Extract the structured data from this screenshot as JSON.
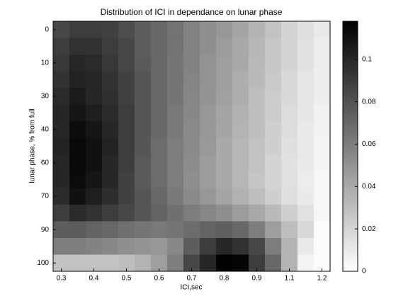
{
  "chart_data": {
    "type": "heatmap",
    "title": "Distribution of ICI in dependance on lunar phase",
    "x_label": "ICI,sec",
    "y_label": "lunar phase, % from full",
    "x_categories": [
      "0.3",
      null,
      "0.4",
      null,
      "0.5",
      null,
      "0.6",
      null,
      "0.7",
      null,
      "0.8",
      null,
      "0.9",
      null,
      "1.1",
      null,
      "1.2"
    ],
    "y_categories": [
      "0",
      null,
      "10",
      null,
      "30",
      null,
      "40",
      null,
      "60",
      null,
      "70",
      null,
      "90",
      null,
      "100"
    ],
    "z": [
      [
        0.085,
        0.09,
        0.09,
        0.088,
        0.082,
        0.075,
        0.07,
        0.065,
        0.058,
        0.052,
        0.048,
        0.042,
        0.035,
        0.028,
        0.02,
        0.015,
        0.01
      ],
      [
        0.09,
        0.095,
        0.095,
        0.09,
        0.085,
        0.075,
        0.07,
        0.065,
        0.058,
        0.052,
        0.046,
        0.04,
        0.034,
        0.026,
        0.02,
        0.014,
        0.008
      ],
      [
        0.092,
        0.1,
        0.098,
        0.092,
        0.085,
        0.076,
        0.07,
        0.064,
        0.058,
        0.05,
        0.045,
        0.04,
        0.033,
        0.026,
        0.02,
        0.014,
        0.008
      ],
      [
        0.095,
        0.102,
        0.1,
        0.095,
        0.088,
        0.078,
        0.07,
        0.064,
        0.057,
        0.05,
        0.045,
        0.038,
        0.032,
        0.025,
        0.018,
        0.012,
        0.008
      ],
      [
        0.098,
        0.105,
        0.1,
        0.096,
        0.088,
        0.078,
        0.07,
        0.064,
        0.056,
        0.05,
        0.044,
        0.038,
        0.03,
        0.024,
        0.018,
        0.012,
        0.008
      ],
      [
        0.1,
        0.108,
        0.104,
        0.098,
        0.09,
        0.078,
        0.07,
        0.062,
        0.055,
        0.048,
        0.042,
        0.036,
        0.03,
        0.024,
        0.016,
        0.012,
        0.006
      ],
      [
        0.1,
        0.112,
        0.108,
        0.1,
        0.09,
        0.078,
        0.07,
        0.062,
        0.054,
        0.048,
        0.042,
        0.035,
        0.03,
        0.022,
        0.016,
        0.01,
        0.006
      ],
      [
        0.102,
        0.114,
        0.11,
        0.102,
        0.09,
        0.078,
        0.068,
        0.06,
        0.054,
        0.047,
        0.04,
        0.034,
        0.028,
        0.022,
        0.015,
        0.01,
        0.005
      ],
      [
        0.1,
        0.114,
        0.11,
        0.1,
        0.09,
        0.077,
        0.068,
        0.06,
        0.053,
        0.046,
        0.04,
        0.034,
        0.028,
        0.02,
        0.014,
        0.01,
        0.005
      ],
      [
        0.1,
        0.113,
        0.108,
        0.1,
        0.088,
        0.076,
        0.068,
        0.06,
        0.052,
        0.046,
        0.04,
        0.034,
        0.027,
        0.02,
        0.014,
        0.009,
        0.004
      ],
      [
        0.098,
        0.11,
        0.104,
        0.097,
        0.088,
        0.078,
        0.07,
        0.062,
        0.054,
        0.048,
        0.042,
        0.036,
        0.03,
        0.022,
        0.015,
        0.01,
        0.004
      ],
      [
        0.09,
        0.098,
        0.095,
        0.09,
        0.085,
        0.078,
        0.072,
        0.066,
        0.06,
        0.056,
        0.052,
        0.046,
        0.04,
        0.032,
        0.022,
        0.014,
        0.004
      ],
      [
        0.075,
        0.075,
        0.072,
        0.07,
        0.066,
        0.064,
        0.062,
        0.064,
        0.068,
        0.072,
        0.074,
        0.07,
        0.06,
        0.045,
        0.03,
        0.018,
        0.002
      ],
      [
        0.06,
        0.06,
        0.058,
        0.055,
        0.052,
        0.05,
        0.048,
        0.055,
        0.075,
        0.09,
        0.1,
        0.095,
        0.085,
        0.06,
        0.035,
        0.01,
        0.002
      ],
      [
        0.028,
        0.028,
        0.028,
        0.028,
        0.03,
        0.035,
        0.045,
        0.06,
        0.085,
        0.1,
        0.117,
        0.116,
        0.09,
        0.07,
        0.035,
        0.005,
        0.002
      ]
    ],
    "clim": [
      0,
      0.118
    ],
    "cticks": [
      0,
      0.02,
      0.04,
      0.06,
      0.08,
      0.1
    ],
    "colormap": [
      "#ffffff",
      "#000000"
    ]
  }
}
